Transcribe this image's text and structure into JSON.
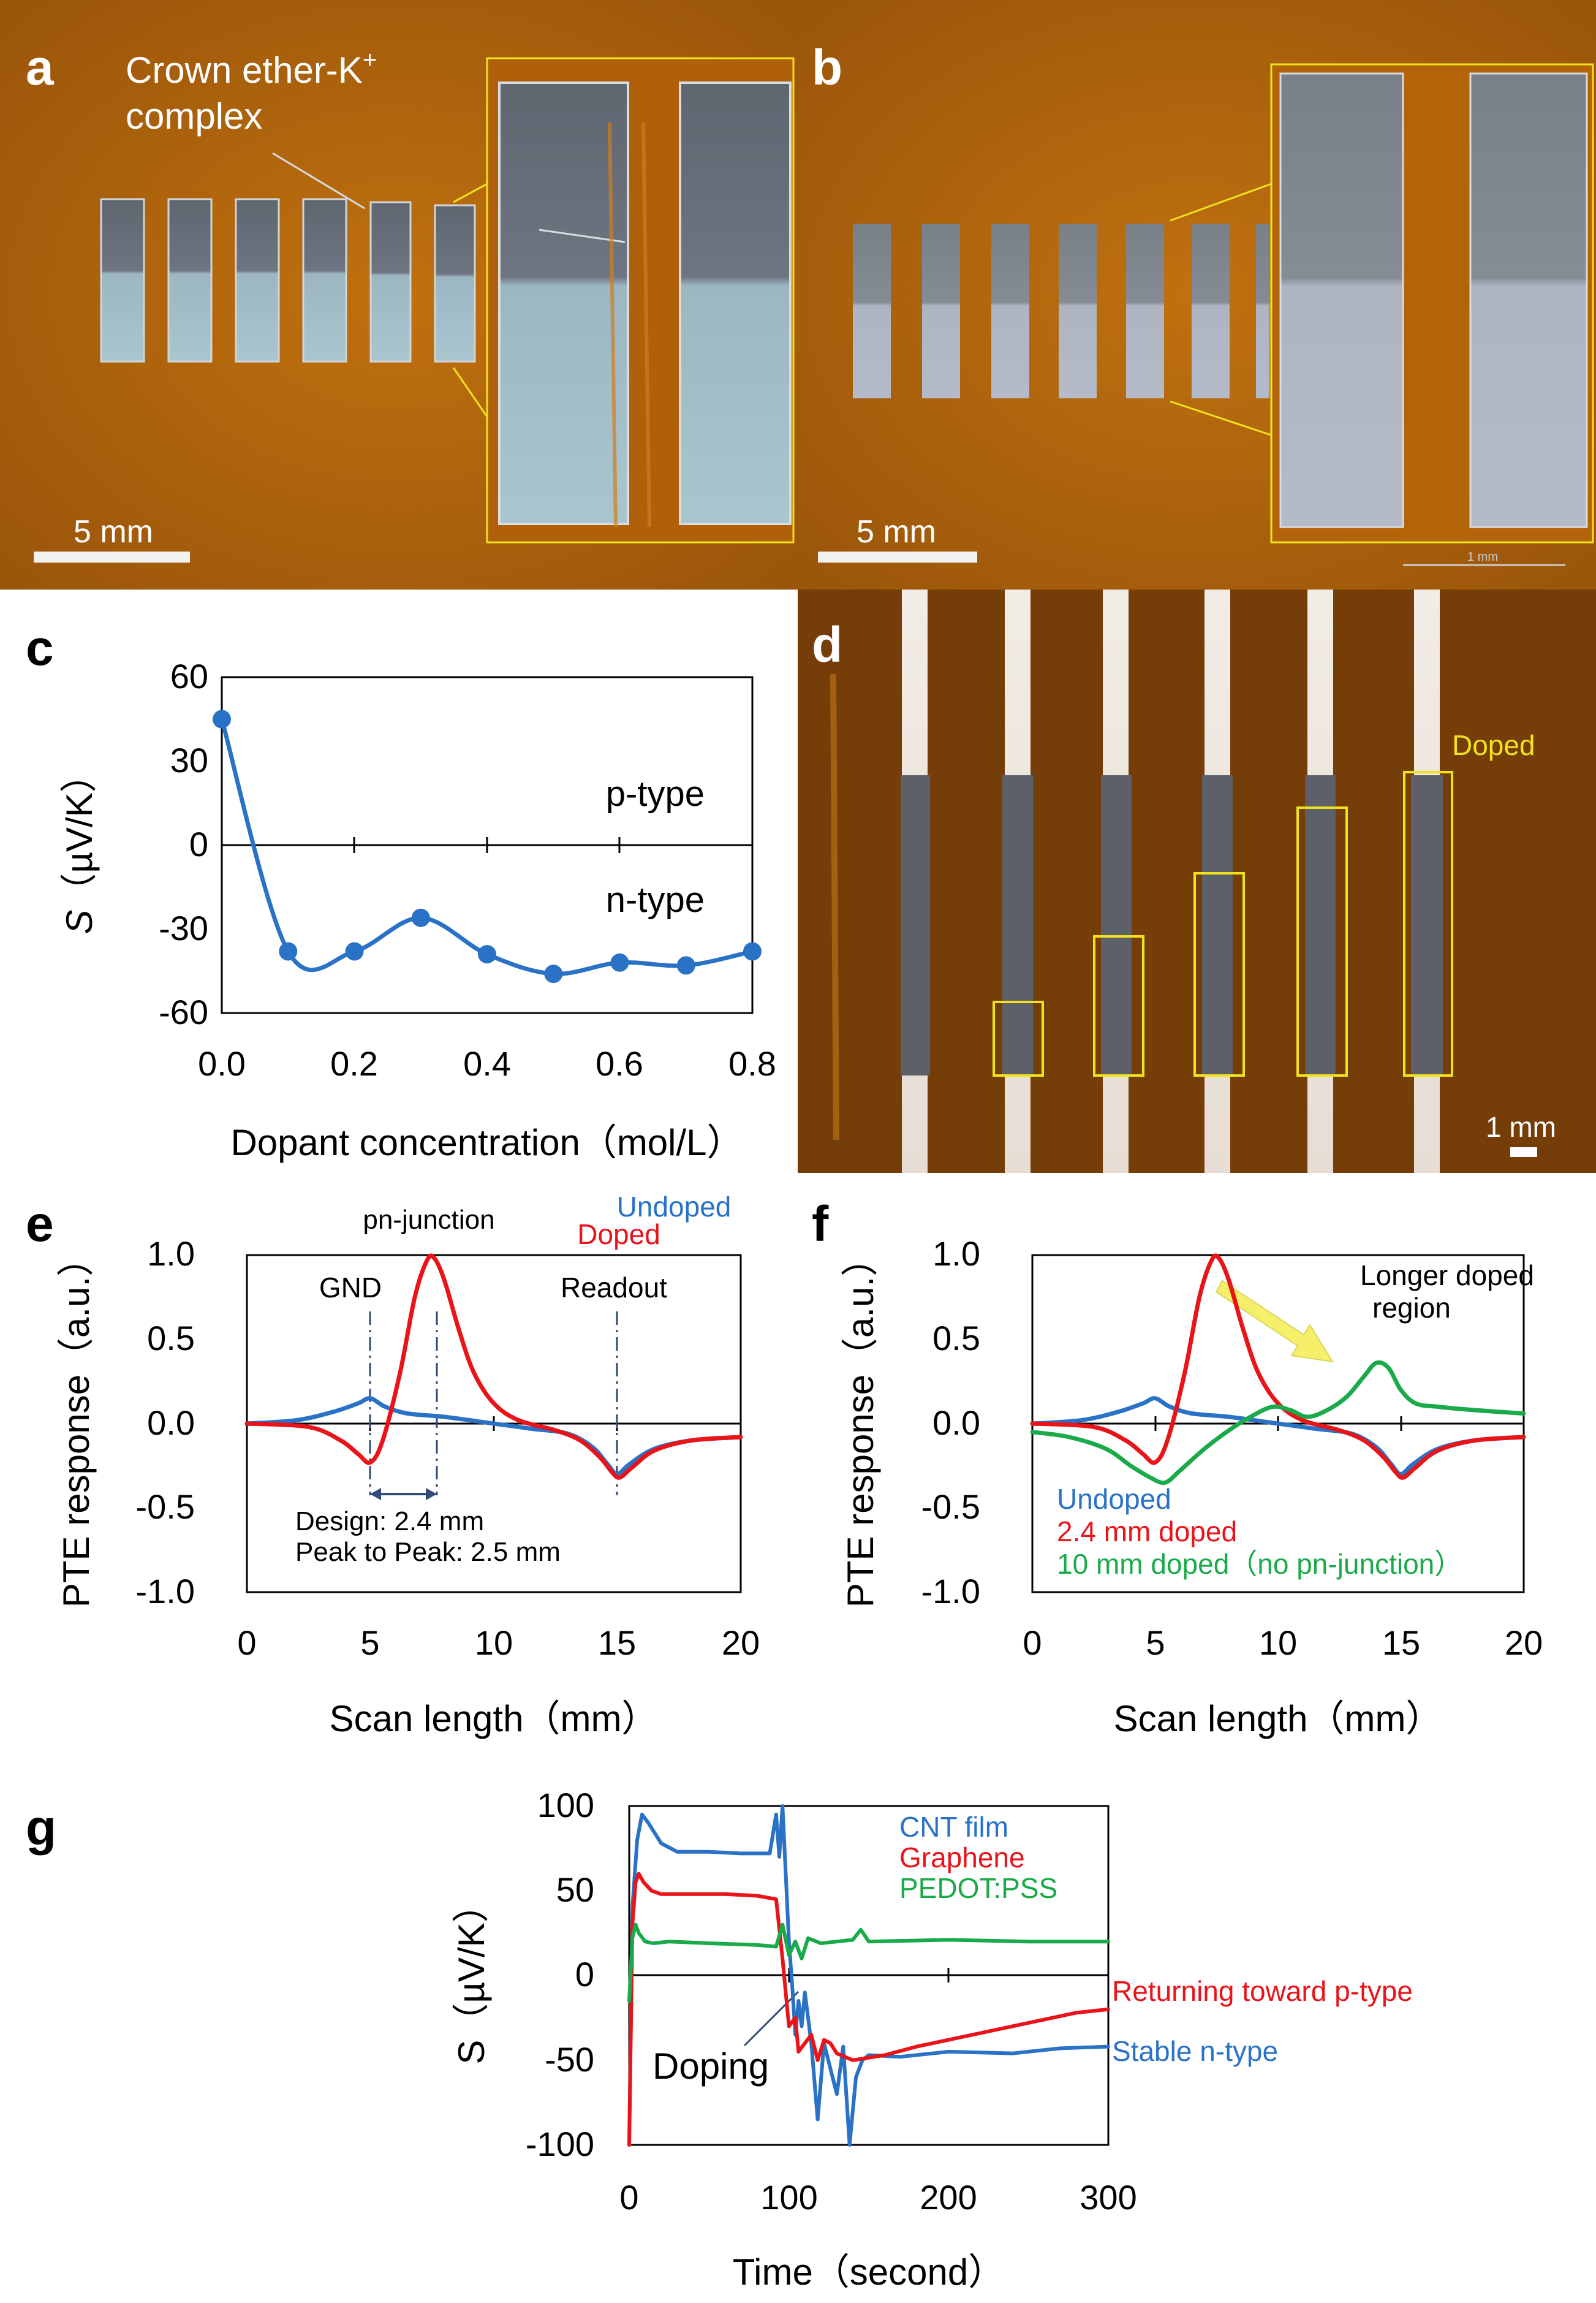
{
  "colors": {
    "micrograph_bg": "#b8680f",
    "micrograph_dark": "#8a4a08",
    "film_top": "#6f747c",
    "film_bottom": "#a8c4cc",
    "highlight": "#f0e21c",
    "undoped": "#2a72c6",
    "doped": "#e8141a",
    "green": "#1aaa4a",
    "axis": "#000000"
  },
  "panels": {
    "a": {
      "label": "a",
      "annotation_line1": "Crown ether-K",
      "annotation_sup": "+",
      "annotation_line2": "complex",
      "scale_bar": "5 mm"
    },
    "b": {
      "label": "b",
      "scale_bar": "5 mm",
      "inset_scale": "1 mm"
    },
    "c": {
      "label": "c"
    },
    "d": {
      "label": "d",
      "doped_label": "Doped",
      "scale_bar": "1 mm"
    },
    "e": {
      "label": "e",
      "label_pn_junction": "pn-junction",
      "label_gnd": "GND",
      "label_readout": "Readout",
      "design_text": "Design: 2.4 mm",
      "peak_text": "Peak to Peak: 2.5 mm"
    },
    "f": {
      "label": "f",
      "callout_line1": "Longer doped",
      "callout_line2": "region"
    },
    "g": {
      "label": "g",
      "label_doping": "Doping",
      "label_returning": "Returning toward p-type",
      "label_stable": "Stable n-type"
    }
  },
  "chart_data": [
    {
      "panel": "c",
      "type": "line",
      "title": "",
      "xlabel": "Dopant concentration（mol/L）",
      "ylabel": "S（µV/K）",
      "ylabel_italic_part": "S",
      "ylabel_rest": "（µV/K）",
      "xlim": [
        0,
        0.8
      ],
      "ylim": [
        -60,
        60
      ],
      "x_ticks": [
        "0.0",
        "0.2",
        "0.4",
        "0.6",
        "0.8"
      ],
      "y_ticks": [
        "60",
        "30",
        "0",
        "-30",
        "-60"
      ],
      "region_labels": [
        "p-type",
        "n-type"
      ],
      "series": [
        {
          "name": "S",
          "x": [
            0.0,
            0.1,
            0.2,
            0.3,
            0.4,
            0.5,
            0.6,
            0.7,
            0.8
          ],
          "y": [
            45,
            -38,
            -38,
            -26,
            -39,
            -46,
            -42,
            -43,
            -38
          ]
        }
      ]
    },
    {
      "panel": "e",
      "type": "line",
      "xlabel": "Scan length（mm）",
      "ylabel": "PTE response（a.u.）",
      "xlim": [
        0,
        20
      ],
      "ylim": [
        -1.0,
        1.0
      ],
      "x_ticks": [
        "0",
        "5",
        "10",
        "15",
        "20"
      ],
      "y_ticks": [
        "1.0",
        "0.5",
        "0.0",
        "-0.5",
        "-1.0"
      ],
      "legend": [
        "Undoped",
        "Doped"
      ],
      "series": [
        {
          "name": "Undoped",
          "x": [
            0,
            2,
            3.5,
            4.5,
            5,
            5.6,
            6.5,
            8,
            10,
            11.5,
            13,
            14,
            14.6,
            15,
            15.5,
            16.5,
            18,
            20
          ],
          "y": [
            0.0,
            0.02,
            0.07,
            0.12,
            0.15,
            0.1,
            0.06,
            0.04,
            0.0,
            -0.03,
            -0.06,
            -0.14,
            -0.24,
            -0.3,
            -0.24,
            -0.15,
            -0.1,
            -0.08
          ]
        },
        {
          "name": "Doped",
          "x": [
            0,
            2.5,
            3.8,
            4.5,
            5.0,
            5.5,
            6.2,
            6.8,
            7.3,
            7.6,
            8.0,
            8.6,
            9.2,
            10.0,
            11,
            12.5,
            13.5,
            14.3,
            14.8,
            15.1,
            15.6,
            16.5,
            18,
            20
          ],
          "y": [
            0.0,
            -0.02,
            -0.1,
            -0.18,
            -0.23,
            -0.1,
            0.3,
            0.75,
            0.97,
            0.98,
            0.85,
            0.55,
            0.3,
            0.12,
            0.02,
            -0.04,
            -0.1,
            -0.2,
            -0.29,
            -0.32,
            -0.26,
            -0.16,
            -0.1,
            -0.08
          ]
        }
      ]
    },
    {
      "panel": "f",
      "type": "line",
      "xlabel": "Scan length（mm）",
      "ylabel": "PTE response（a.u.）",
      "xlim": [
        0,
        20
      ],
      "ylim": [
        -1.0,
        1.0
      ],
      "x_ticks": [
        "0",
        "5",
        "10",
        "15",
        "20"
      ],
      "y_ticks": [
        "1.0",
        "0.5",
        "0.0",
        "-0.5",
        "-1.0"
      ],
      "legend": [
        "Undoped",
        "2.4 mm doped",
        "10 mm doped（no pn-junction）"
      ],
      "series": [
        {
          "name": "Undoped",
          "x": [
            0,
            2,
            3.5,
            4.5,
            5,
            5.6,
            6.5,
            8,
            10,
            11.5,
            13,
            14,
            14.6,
            15,
            15.5,
            16.5,
            18,
            20
          ],
          "y": [
            0.0,
            0.02,
            0.07,
            0.12,
            0.15,
            0.1,
            0.06,
            0.04,
            0.0,
            -0.03,
            -0.06,
            -0.14,
            -0.24,
            -0.3,
            -0.24,
            -0.15,
            -0.1,
            -0.08
          ]
        },
        {
          "name": "2.4 mm doped",
          "x": [
            0,
            2.5,
            3.8,
            4.5,
            5.0,
            5.5,
            6.2,
            6.8,
            7.3,
            7.6,
            8.0,
            8.6,
            9.2,
            10.0,
            11,
            12.5,
            13.5,
            14.3,
            14.8,
            15.1,
            15.6,
            16.5,
            18,
            20
          ],
          "y": [
            0.0,
            -0.02,
            -0.1,
            -0.18,
            -0.23,
            -0.1,
            0.3,
            0.75,
            0.97,
            0.98,
            0.85,
            0.55,
            0.3,
            0.12,
            0.02,
            -0.04,
            -0.1,
            -0.2,
            -0.29,
            -0.32,
            -0.26,
            -0.16,
            -0.1,
            -0.08
          ]
        },
        {
          "name": "10 mm doped（no pn-junction）",
          "x": [
            0,
            1.5,
            3,
            4,
            4.8,
            5.4,
            6,
            7,
            8,
            9,
            9.8,
            10.5,
            11.2,
            12,
            12.8,
            13.5,
            14,
            14.5,
            15,
            15.6,
            16.5,
            18,
            20
          ],
          "y": [
            -0.05,
            -0.08,
            -0.15,
            -0.25,
            -0.32,
            -0.35,
            -0.28,
            -0.15,
            -0.04,
            0.05,
            0.1,
            0.08,
            0.04,
            0.08,
            0.16,
            0.28,
            0.36,
            0.33,
            0.2,
            0.12,
            0.1,
            0.08,
            0.06
          ]
        }
      ]
    },
    {
      "panel": "g",
      "type": "line",
      "xlabel": "Time（second）",
      "ylabel": "S（µV/K）",
      "xlim": [
        0,
        300
      ],
      "ylim": [
        -100,
        100
      ],
      "x_ticks": [
        "0",
        "100",
        "200",
        "300"
      ],
      "y_ticks": [
        "100",
        "50",
        "0",
        "-50",
        "-100"
      ],
      "legend": [
        "CNT film",
        "Graphene",
        "PEDOT:PSS"
      ],
      "series": [
        {
          "name": "CNT film",
          "x": [
            0,
            2,
            5,
            8,
            12,
            20,
            30,
            50,
            70,
            88,
            92,
            94,
            96,
            98,
            100,
            102,
            104,
            106,
            108,
            110,
            114,
            118,
            122,
            126,
            130,
            134,
            138,
            142,
            146,
            150,
            170,
            200,
            240,
            270,
            300
          ],
          "y": [
            -100,
            40,
            80,
            95,
            90,
            78,
            73,
            73,
            72,
            72,
            95,
            70,
            100,
            60,
            20,
            -5,
            -35,
            -15,
            -30,
            -10,
            -40,
            -85,
            -40,
            -55,
            -70,
            -42,
            -100,
            -60,
            -50,
            -47,
            -48,
            -45,
            -46,
            -43,
            -42
          ]
        },
        {
          "name": "Graphene",
          "x": [
            0,
            2,
            4,
            6,
            9,
            14,
            20,
            40,
            60,
            80,
            92,
            96,
            100,
            104,
            106,
            110,
            114,
            118,
            122,
            126,
            130,
            140,
            160,
            180,
            200,
            220,
            240,
            260,
            280,
            300
          ],
          "y": [
            -100,
            30,
            55,
            60,
            55,
            50,
            48,
            48,
            48,
            47,
            45,
            10,
            -30,
            -25,
            -45,
            -40,
            -35,
            -50,
            -38,
            -40,
            -46,
            -50,
            -47,
            -42,
            -38,
            -34,
            -30,
            -26,
            -22,
            -20
          ]
        },
        {
          "name": "PEDOT:PSS",
          "x": [
            0,
            2,
            4,
            6,
            10,
            15,
            25,
            50,
            80,
            92,
            96,
            100,
            104,
            108,
            112,
            120,
            130,
            140,
            145,
            150,
            200,
            250,
            300
          ],
          "y": [
            -15,
            22,
            30,
            25,
            20,
            19,
            20,
            19,
            18,
            17,
            30,
            12,
            20,
            10,
            22,
            19,
            20,
            21,
            27,
            20,
            21,
            20,
            20
          ]
        }
      ]
    }
  ]
}
